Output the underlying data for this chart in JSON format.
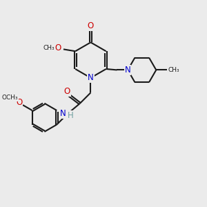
{
  "bg_color": "#ebebeb",
  "bond_color": "#1a1a1a",
  "N_color": "#0000cc",
  "O_color": "#cc0000",
  "H_color": "#70a0a0",
  "text_color": "#1a1a1a",
  "font_size": 8.5,
  "small_font": 6.5,
  "line_width": 1.5,
  "figsize": [
    3.0,
    3.0
  ],
  "dpi": 100,
  "xlim": [
    0,
    10
  ],
  "ylim": [
    0,
    10
  ]
}
